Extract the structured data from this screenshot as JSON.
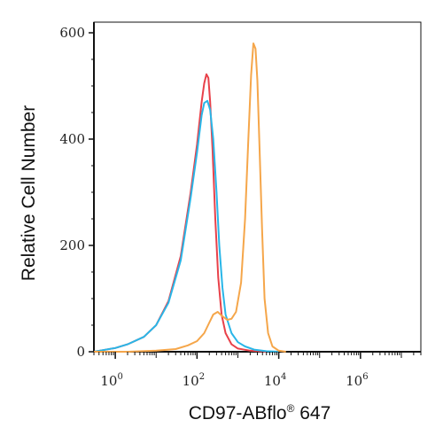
{
  "chart_data": {
    "type": "line",
    "title": "",
    "xlabel": "CD97-ABflo",
    "xlabel_mark": "®",
    "xlabel_suffix": " 647",
    "ylabel": "Relative Cell Number",
    "x_scale": "log",
    "xlim": [
      0.3,
      30000000
    ],
    "ylim": [
      0,
      620
    ],
    "grid": false,
    "legend": "none",
    "x_ticks": [
      {
        "value": 1,
        "base": "10",
        "exp": "0"
      },
      {
        "value": 100,
        "base": "10",
        "exp": "2"
      },
      {
        "value": 10000,
        "base": "10",
        "exp": "4"
      },
      {
        "value": 1000000,
        "base": "10",
        "exp": "6"
      }
    ],
    "y_ticks": [
      {
        "value": 0,
        "label": "0"
      },
      {
        "value": 200,
        "label": "200"
      },
      {
        "value": 400,
        "label": "400"
      },
      {
        "value": 600,
        "label": "600"
      }
    ],
    "series": [
      {
        "color": "#e8414a",
        "points": [
          [
            0.3,
            0
          ],
          [
            0.5,
            3
          ],
          [
            1,
            7
          ],
          [
            2,
            14
          ],
          [
            5,
            28
          ],
          [
            10,
            50
          ],
          [
            20,
            95
          ],
          [
            40,
            180
          ],
          [
            70,
            300
          ],
          [
            100,
            390
          ],
          [
            130,
            470
          ],
          [
            150,
            505
          ],
          [
            170,
            522
          ],
          [
            190,
            515
          ],
          [
            210,
            470
          ],
          [
            240,
            380
          ],
          [
            280,
            250
          ],
          [
            330,
            140
          ],
          [
            400,
            70
          ],
          [
            500,
            35
          ],
          [
            700,
            14
          ],
          [
            1000,
            6
          ],
          [
            2000,
            2
          ],
          [
            5000,
            0
          ]
        ]
      },
      {
        "color": "#29b6e8",
        "points": [
          [
            0.3,
            0
          ],
          [
            0.5,
            3
          ],
          [
            1,
            7
          ],
          [
            2,
            14
          ],
          [
            5,
            28
          ],
          [
            10,
            50
          ],
          [
            20,
            92
          ],
          [
            40,
            172
          ],
          [
            70,
            290
          ],
          [
            100,
            375
          ],
          [
            130,
            445
          ],
          [
            150,
            468
          ],
          [
            180,
            472
          ],
          [
            210,
            455
          ],
          [
            250,
            400
          ],
          [
            300,
            300
          ],
          [
            350,
            200
          ],
          [
            420,
            120
          ],
          [
            500,
            70
          ],
          [
            700,
            35
          ],
          [
            1000,
            18
          ],
          [
            1500,
            10
          ],
          [
            2500,
            4
          ],
          [
            5000,
            1
          ],
          [
            10000,
            0
          ]
        ]
      },
      {
        "color": "#f5a64a",
        "points": [
          [
            0.3,
            0
          ],
          [
            2,
            0
          ],
          [
            10,
            2
          ],
          [
            30,
            5
          ],
          [
            60,
            12
          ],
          [
            100,
            20
          ],
          [
            150,
            35
          ],
          [
            200,
            55
          ],
          [
            250,
            70
          ],
          [
            320,
            75
          ],
          [
            400,
            68
          ],
          [
            550,
            60
          ],
          [
            700,
            62
          ],
          [
            900,
            75
          ],
          [
            1200,
            130
          ],
          [
            1500,
            250
          ],
          [
            1800,
            400
          ],
          [
            2100,
            520
          ],
          [
            2400,
            580
          ],
          [
            2700,
            570
          ],
          [
            3000,
            510
          ],
          [
            3400,
            380
          ],
          [
            3900,
            230
          ],
          [
            4500,
            100
          ],
          [
            5500,
            35
          ],
          [
            7000,
            10
          ],
          [
            10000,
            2
          ],
          [
            15000,
            0
          ]
        ]
      }
    ]
  }
}
